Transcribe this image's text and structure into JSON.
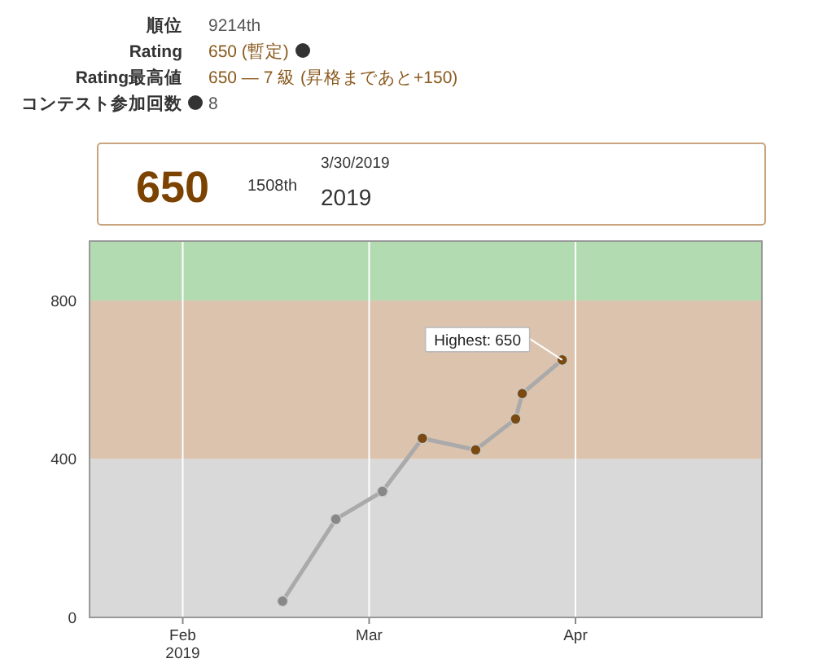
{
  "chart_data": [
    {
      "type": "other",
      "annotations": [
        "順位",
        "9214th",
        "Rating",
        "650 (暫定)",
        "Rating最高値",
        "650 — 7 級 (昇格まであと+150)",
        "コンテスト参加回数",
        "8"
      ]
    },
    {
      "type": "other",
      "annotations": [
        "650",
        "1508th",
        "3/30/2019",
        "2019"
      ]
    },
    {
      "type": "line",
      "x": [
        "2019-02-16",
        "2019-02-24",
        "2019-03-03",
        "2019-03-09",
        "2019-03-17",
        "2019-03-23",
        "2019-03-24",
        "2019-03-30"
      ],
      "series": [
        {
          "color": "#aaaaaa",
          "values": [
            41,
            248,
            318,
            452,
            423,
            501,
            565,
            650
          ],
          "colors": [
            "#888888",
            "#888888",
            "#888888",
            "#7b4a12",
            "#7b4a12",
            "#7b4a12",
            "#7b4a12",
            "#7b4a12"
          ]
        }
      ],
      "xlim": [
        "2019-01-18",
        "2019-04-29"
      ],
      "xticks": [
        {
          "value": "2019-02-01",
          "label": "Feb\n2019"
        },
        {
          "value": "2019-03-01",
          "label": "Mar"
        },
        {
          "value": "2019-04-01",
          "label": "Apr"
        }
      ],
      "ylim": [
        0,
        950
      ],
      "yticks": [
        0,
        400,
        800
      ],
      "bands": [
        {
          "axis": "y",
          "from": 0,
          "to": 400,
          "color": "#d9d9d9"
        },
        {
          "axis": "y",
          "from": 400,
          "to": 800,
          "color": "#dcc3ad"
        },
        {
          "axis": "y",
          "from": 800,
          "to": 950,
          "color": "#b3dbb1"
        }
      ],
      "grid": "x",
      "marker": "circle",
      "line_style": "solid",
      "annotations": [
        {
          "text": "Highest: 650",
          "x": "2019-03-30",
          "y": 650
        }
      ]
    }
  ]
}
